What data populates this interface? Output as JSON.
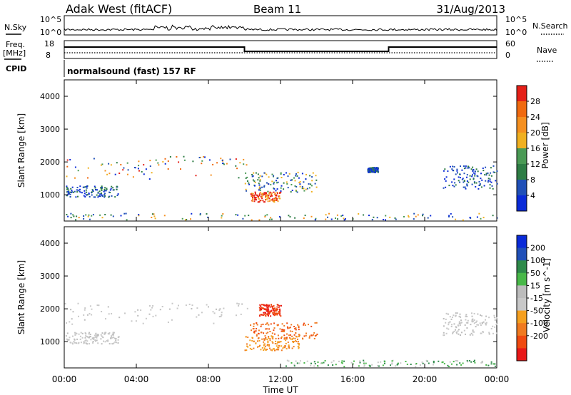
{
  "header": {
    "title": "Adak West (fitACF)",
    "beam": "Beam 11",
    "date": "31/Aug/2013"
  },
  "nsky_panel": {
    "left_label": "N.Sky",
    "left_ticks": [
      "10^5",
      "10^0"
    ],
    "right_ticks": [
      "10^5",
      "10^0"
    ],
    "right_label": "N.Search"
  },
  "freq_panel": {
    "left_label_line1": "Freq.",
    "left_label_line2": "[MHz]",
    "left_ticks": [
      18,
      8
    ],
    "right_ticks": [
      60,
      0
    ],
    "right_label": "Nave"
  },
  "cpid_panel": {
    "label": "CPID",
    "mode": "normalsound (fast) 157 RF"
  },
  "axes": {
    "xlabel": "Time UT",
    "x_ticks": [
      "00:00",
      "04:00",
      "08:00",
      "12:00",
      "16:00",
      "20:00",
      "00:00"
    ],
    "ylabel": "Slant Range [km]",
    "y_ticks": [
      1000,
      2000,
      3000,
      4000
    ],
    "ylim": [
      200,
      4500
    ]
  },
  "colors": {
    "power": [
      "#0a2bd8",
      "#2050b8",
      "#2e7d45",
      "#4a9a55",
      "#f0b020",
      "#f59020",
      "#f06a10",
      "#e52018"
    ],
    "velocity": [
      "#e81818",
      "#f04a10",
      "#f07a20",
      "#f5a020",
      "#c8c8c8",
      "#bcbcbc",
      "#48b848",
      "#2e8a4a",
      "#2050b8",
      "#0a2bd8"
    ]
  },
  "chart_data": [
    {
      "type": "heatmap",
      "name": "power",
      "colorbar": {
        "label": "Power [dB]",
        "ticks": [
          4,
          8,
          12,
          16,
          20,
          24,
          28
        ],
        "range": [
          0,
          32
        ]
      },
      "regions": [
        {
          "t_start": 0.0,
          "t_end": 10.1,
          "r_start": 1500,
          "r_end": 2200,
          "level": "mixed-strong"
        },
        {
          "t_start": 0.0,
          "t_end": 3.0,
          "r_start": 950,
          "r_end": 1300,
          "level": "weak"
        },
        {
          "t_start": 10.0,
          "t_end": 14.0,
          "r_start": 1100,
          "r_end": 1700,
          "level": "medium"
        },
        {
          "t_start": 10.3,
          "t_end": 12.0,
          "r_start": 800,
          "r_end": 1100,
          "level": "strong"
        },
        {
          "t_start": 16.8,
          "t_end": 17.4,
          "r_start": 1700,
          "r_end": 1850,
          "level": "weak"
        },
        {
          "t_start": 21.0,
          "t_end": 24.0,
          "r_start": 1200,
          "r_end": 1900,
          "level": "weak"
        },
        {
          "t_start": 0.0,
          "t_end": 24.0,
          "r_start": 250,
          "r_end": 450,
          "level": "ground-clutter"
        }
      ]
    },
    {
      "type": "heatmap",
      "name": "velocity",
      "colorbar": {
        "label": "Velocity [m s^-1]",
        "ticks": [
          200,
          100,
          50,
          15,
          -15,
          -50,
          -100,
          -200
        ]
      },
      "regions": [
        {
          "t_start": 0.0,
          "t_end": 10.2,
          "r_start": 1500,
          "r_end": 2200,
          "velocity": "near-zero"
        },
        {
          "t_start": 0.0,
          "t_end": 3.0,
          "r_start": 950,
          "r_end": 1300,
          "velocity": "near-zero"
        },
        {
          "t_start": 10.8,
          "t_end": 12.0,
          "r_start": 1800,
          "r_end": 2150,
          "velocity": -200
        },
        {
          "t_start": 10.3,
          "t_end": 14.0,
          "r_start": 1100,
          "r_end": 1600,
          "velocity": -100
        },
        {
          "t_start": 10.0,
          "t_end": 13.0,
          "r_start": 750,
          "r_end": 1200,
          "velocity": -50
        },
        {
          "t_start": 21.0,
          "t_end": 24.0,
          "r_start": 1200,
          "r_end": 1900,
          "velocity": "near-zero"
        },
        {
          "t_start": 12.0,
          "t_end": 24.0,
          "r_start": 250,
          "r_end": 450,
          "velocity": 50
        }
      ]
    }
  ]
}
